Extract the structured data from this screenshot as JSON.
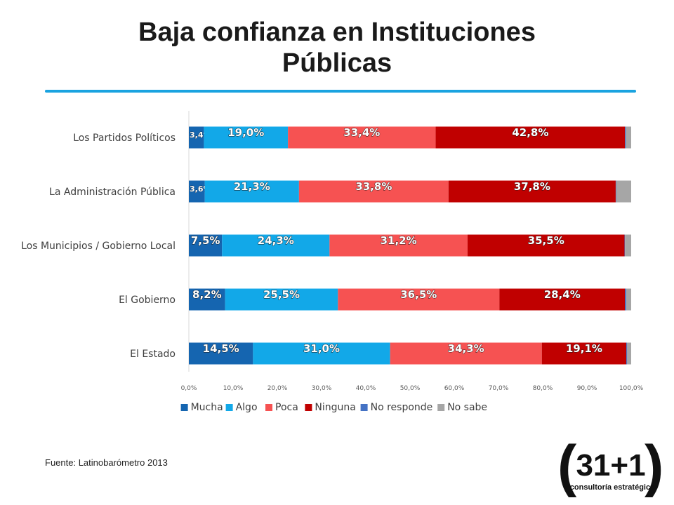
{
  "title": "Baja confianza en Instituciones Públicas",
  "source": "Fuente: Latinobarómetro 2013",
  "logo": {
    "mark": "31+1",
    "tagline": "consultoría estratégica"
  },
  "colors": {
    "Mucha": "#1565b0",
    "Algo": "#12a8e8",
    "Poca": "#f65252",
    "Ninguna": "#c00000",
    "No responde": "#4472c4",
    "No sabe": "#a6a6a6"
  },
  "chart_data": {
    "type": "bar",
    "orientation": "horizontal",
    "stacked": true,
    "title": "Baja confianza en Instituciones Públicas",
    "categories": [
      "Los Partidos Políticos",
      "La Administración Pública",
      "Los Municipios / Gobierno Local",
      "El Gobierno",
      "El Estado"
    ],
    "series": [
      {
        "name": "Mucha",
        "values": [
          3.4,
          3.6,
          7.5,
          8.2,
          14.5
        ],
        "labels": [
          "3,4%",
          "3,6%",
          "7,5%",
          "8,2%",
          "14,5%"
        ]
      },
      {
        "name": "Algo",
        "values": [
          19.0,
          21.3,
          24.3,
          25.5,
          31.0
        ],
        "labels": [
          "19,0%",
          "21,3%",
          "24,3%",
          "25,5%",
          "31,0%"
        ]
      },
      {
        "name": "Poca",
        "values": [
          33.4,
          33.8,
          31.2,
          36.5,
          34.3
        ],
        "labels": [
          "33,4%",
          "33,8%",
          "31,2%",
          "36,5%",
          "34,3%"
        ]
      },
      {
        "name": "Ninguna",
        "values": [
          42.8,
          37.8,
          35.5,
          28.4,
          19.1
        ],
        "labels": [
          "42,8%",
          "37,8%",
          "35,5%",
          "28,4%",
          "19,1%"
        ]
      },
      {
        "name": "No responde",
        "values": [
          0.2,
          0.1,
          0.1,
          0.3,
          0.2
        ],
        "labels": [
          "",
          "",
          "",
          "",
          ""
        ]
      },
      {
        "name": "No sabe",
        "values": [
          1.2,
          3.4,
          1.4,
          1.1,
          0.9
        ],
        "labels": [
          "",
          "",
          "",
          "",
          ""
        ]
      }
    ],
    "xlim": [
      0,
      100
    ],
    "xticks": [
      "0,0%",
      "10,0%",
      "20,0%",
      "30,0%",
      "40,0%",
      "50,0%",
      "60,0%",
      "70,0%",
      "80,0%",
      "90,0%",
      "100,0%"
    ],
    "legend_position": "bottom",
    "grid": false
  }
}
